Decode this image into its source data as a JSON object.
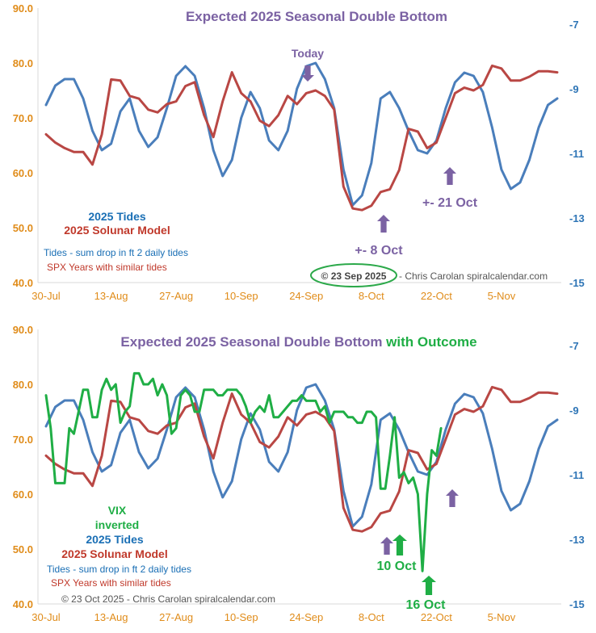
{
  "colors": {
    "tides": "#4a7ebb",
    "solunar": "#b94744",
    "vix": "#1fae45",
    "annotation": "#7b62a3",
    "label_blue": "#1a6fb5",
    "label_red": "#c0392b",
    "axis_left": "#e08c1a",
    "axis_right": "#2e75b6",
    "date_axis": "#e08c1a",
    "credit": "#555555"
  },
  "chart_data": [
    {
      "type": "line",
      "title": "Expected 2025 Seasonal Double Bottom",
      "y_left": {
        "min": 40,
        "max": 90,
        "ticks": [
          "40.0",
          "50.0",
          "60.0",
          "70.0",
          "80.0",
          "90.0"
        ]
      },
      "y_right": {
        "min": -15,
        "max": -6.5,
        "ticks": [
          "-7",
          "-9",
          "-11",
          "-13",
          "-15"
        ]
      },
      "x_range_days": [
        0,
        110
      ],
      "x_tick_days": [
        0,
        14,
        28,
        42,
        56,
        70,
        84,
        98
      ],
      "x_tick_labels": [
        "30-Jul",
        "13-Aug",
        "27-Aug",
        "10-Sep",
        "24-Sep",
        "8-Oct",
        "22-Oct",
        "5-Nov"
      ],
      "series": [
        {
          "name": "2025 Tides",
          "axis": "right",
          "x": [
            0,
            2,
            4,
            6,
            8,
            10,
            12,
            14,
            16,
            18,
            20,
            22,
            24,
            26,
            28,
            30,
            32,
            34,
            36,
            38,
            40,
            42,
            44,
            46,
            48,
            50,
            52,
            54,
            56,
            58,
            60,
            62,
            64,
            66,
            68,
            70,
            72,
            74,
            76,
            78,
            80,
            82,
            84,
            86,
            88,
            90,
            92,
            94,
            96,
            98,
            100,
            102,
            104,
            106,
            108,
            110
          ],
          "values": [
            -9.5,
            -8.9,
            -8.7,
            -8.7,
            -9.3,
            -10.3,
            -10.9,
            -10.7,
            -9.7,
            -9.3,
            -10.3,
            -10.8,
            -10.5,
            -9.6,
            -8.6,
            -8.3,
            -8.6,
            -9.6,
            -10.9,
            -11.7,
            -11.2,
            -9.9,
            -9.1,
            -9.6,
            -10.6,
            -10.9,
            -10.3,
            -9.0,
            -8.3,
            -8.2,
            -8.7,
            -9.6,
            -11.5,
            -12.6,
            -12.3,
            -11.3,
            -9.3,
            -9.1,
            -9.6,
            -10.3,
            -10.9,
            -11.0,
            -10.6,
            -9.6,
            -8.8,
            -8.5,
            -8.6,
            -9.1,
            -10.2,
            -11.5,
            -12.1,
            -11.9,
            -11.2,
            -10.2,
            -9.5,
            -9.3
          ]
        },
        {
          "name": "2025 Solunar Model",
          "axis": "left",
          "x": [
            0,
            2,
            4,
            6,
            8,
            10,
            12,
            14,
            16,
            18,
            20,
            22,
            24,
            26,
            28,
            30,
            32,
            34,
            36,
            38,
            40,
            42,
            44,
            46,
            48,
            50,
            52,
            54,
            56,
            58,
            60,
            62,
            64,
            66,
            68,
            70,
            72,
            74,
            76,
            78,
            80,
            82,
            84,
            86,
            88,
            90,
            92,
            94,
            96,
            98,
            100,
            102,
            104,
            106,
            108,
            110
          ],
          "values": [
            67,
            65.5,
            64.5,
            63.8,
            63.8,
            61.5,
            67,
            77,
            76.8,
            74,
            73.5,
            71.5,
            71,
            72.5,
            73,
            75.8,
            76.5,
            70.5,
            66.5,
            73,
            78.3,
            74.5,
            73,
            69.5,
            68.5,
            70.5,
            74,
            72.5,
            74.5,
            75,
            74,
            71.5,
            57.5,
            53.5,
            53.2,
            54,
            56.5,
            57,
            60.5,
            68,
            67.5,
            64.5,
            65.5,
            70,
            74.5,
            75.5,
            75,
            76,
            79.5,
            79,
            76.8,
            76.8,
            77.5,
            78.5,
            78.5,
            78.3
          ]
        }
      ],
      "legend": {
        "tides": "2025 Tides",
        "solunar": "2025 Solunar Model",
        "tides_note": "Tides - sum drop in ft 2 daily tides",
        "solunar_note": "SPX Years with similar tides"
      },
      "annotations": {
        "today": "Today",
        "oct8": "+- 8 Oct",
        "oct21": "+- 21 Oct",
        "credit_date": "©  23 Sep 2025",
        "credit_author": "- Chris Carolan  spiralcalendar.com"
      }
    },
    {
      "type": "line",
      "title": "Expected 2025 Seasonal Double Bottom",
      "title_suffix": "with Outcome",
      "y_left": {
        "min": 40,
        "max": 90,
        "ticks": [
          "40.0",
          "50.0",
          "60.0",
          "70.0",
          "80.0",
          "90.0"
        ]
      },
      "y_right": {
        "min": -15,
        "max": -6.5,
        "ticks": [
          "-7",
          "-9",
          "-11",
          "-13",
          "-15"
        ]
      },
      "x_range_days": [
        0,
        110
      ],
      "x_tick_days": [
        0,
        14,
        28,
        42,
        56,
        70,
        84,
        98
      ],
      "x_tick_labels": [
        "30-Jul",
        "13-Aug",
        "27-Aug",
        "10-Sep",
        "24-Sep",
        "8-Oct",
        "22-Oct",
        "5-Nov"
      ],
      "series": [
        {
          "name": "2025 Tides",
          "axis": "right",
          "x": [
            0,
            2,
            4,
            6,
            8,
            10,
            12,
            14,
            16,
            18,
            20,
            22,
            24,
            26,
            28,
            30,
            32,
            34,
            36,
            38,
            40,
            42,
            44,
            46,
            48,
            50,
            52,
            54,
            56,
            58,
            60,
            62,
            64,
            66,
            68,
            70,
            72,
            74,
            76,
            78,
            80,
            82,
            84,
            86,
            88,
            90,
            92,
            94,
            96,
            98,
            100,
            102,
            104,
            106,
            108,
            110
          ],
          "values": [
            -9.5,
            -8.9,
            -8.7,
            -8.7,
            -9.3,
            -10.3,
            -10.9,
            -10.7,
            -9.7,
            -9.3,
            -10.3,
            -10.8,
            -10.5,
            -9.6,
            -8.6,
            -8.3,
            -8.6,
            -9.6,
            -10.9,
            -11.7,
            -11.2,
            -9.9,
            -9.1,
            -9.6,
            -10.6,
            -10.9,
            -10.3,
            -9.0,
            -8.3,
            -8.2,
            -8.7,
            -9.6,
            -11.5,
            -12.6,
            -12.3,
            -11.3,
            -9.3,
            -9.1,
            -9.6,
            -10.3,
            -10.9,
            -11.0,
            -10.6,
            -9.6,
            -8.8,
            -8.5,
            -8.6,
            -9.1,
            -10.2,
            -11.5,
            -12.1,
            -11.9,
            -11.2,
            -10.2,
            -9.5,
            -9.3
          ]
        },
        {
          "name": "2025 Solunar Model",
          "axis": "left",
          "x": [
            0,
            2,
            4,
            6,
            8,
            10,
            12,
            14,
            16,
            18,
            20,
            22,
            24,
            26,
            28,
            30,
            32,
            34,
            36,
            38,
            40,
            42,
            44,
            46,
            48,
            50,
            52,
            54,
            56,
            58,
            60,
            62,
            64,
            66,
            68,
            70,
            72,
            74,
            76,
            78,
            80,
            82,
            84,
            86,
            88,
            90,
            92,
            94,
            96,
            98,
            100,
            102,
            104,
            106,
            108,
            110
          ],
          "values": [
            67,
            65.5,
            64.5,
            63.8,
            63.8,
            61.5,
            67,
            77,
            76.8,
            74,
            73.5,
            71.5,
            71,
            72.5,
            73,
            75.8,
            76.5,
            70.5,
            66.5,
            73,
            78.3,
            74.5,
            73,
            69.5,
            68.5,
            70.5,
            74,
            72.5,
            74.5,
            75,
            74,
            71.5,
            57.5,
            53.5,
            53.2,
            54,
            56.5,
            57,
            60.5,
            68,
            67.5,
            64.5,
            65.5,
            70,
            74.5,
            75.5,
            75,
            76,
            79.5,
            79,
            76.8,
            76.8,
            77.5,
            78.5,
            78.5,
            78.3
          ]
        },
        {
          "name": "VIX inverted",
          "axis": "left",
          "x": [
            0,
            1,
            2,
            3,
            4,
            5,
            6,
            7,
            8,
            9,
            10,
            11,
            12,
            13,
            14,
            15,
            16,
            17,
            18,
            19,
            20,
            21,
            22,
            23,
            24,
            25,
            26,
            27,
            28,
            29,
            30,
            31,
            32,
            33,
            34,
            35,
            36,
            37,
            38,
            39,
            40,
            41,
            42,
            43,
            44,
            45,
            46,
            47,
            48,
            49,
            50,
            51,
            52,
            53,
            54,
            55,
            56,
            57,
            58,
            59,
            60,
            61,
            62,
            63,
            64,
            65,
            66,
            67,
            68,
            69,
            70,
            71,
            72,
            73,
            74,
            75,
            76,
            77,
            78,
            79,
            80,
            81,
            82,
            83,
            84,
            85
          ],
          "values": [
            78,
            72,
            62,
            62,
            62,
            72,
            71,
            75,
            79,
            79,
            74,
            74,
            79,
            81,
            79,
            80,
            73,
            75,
            76,
            82,
            82,
            80,
            80,
            81,
            78,
            80,
            78,
            71,
            72,
            78,
            79,
            78,
            75,
            75,
            79,
            79,
            79,
            78,
            78,
            79,
            79,
            79,
            78,
            76,
            73,
            75,
            76,
            75,
            78,
            74,
            74,
            75,
            76,
            77,
            77,
            78,
            77,
            77,
            77,
            75,
            76,
            73,
            75,
            75,
            75,
            74,
            74,
            73,
            73,
            75,
            75,
            74,
            61,
            61,
            67,
            74,
            63,
            64,
            62,
            63,
            60,
            46,
            60,
            68,
            67,
            72
          ]
        }
      ],
      "legend": {
        "vix_line1": "VIX",
        "vix_line2": "inverted",
        "tides": "2025 Tides",
        "solunar": "2025 Solunar Model",
        "tides_note": "Tides - sum drop in ft 2 daily tides",
        "solunar_note": "SPX Years with similar tides"
      },
      "annotations": {
        "oct10": "10 Oct",
        "oct16": "16 Oct",
        "credit": "©  23 Oct 2025 - Chris Carolan  spiralcalendar.com"
      }
    }
  ]
}
